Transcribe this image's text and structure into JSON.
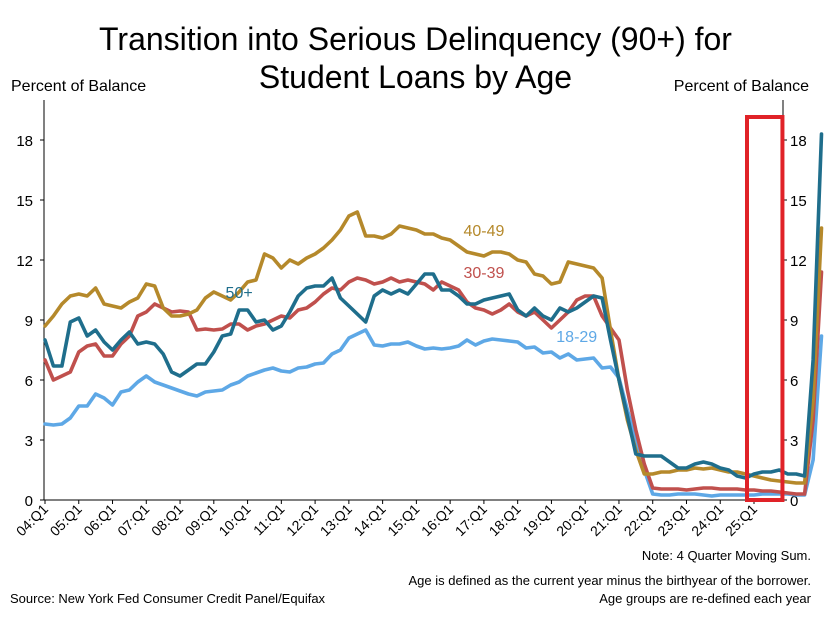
{
  "chart_data": {
    "type": "line",
    "title": [
      "Transition into Serious Delinquency (90+) for",
      "Student Loans by Age"
    ],
    "ylabel_left": "Percent of Balance",
    "ylabel_right": "Percent of Balance",
    "x_start": "2004 Q1",
    "x_end": "2025 Q2",
    "quarter_labels": [
      "04:Q1",
      "05:Q1",
      "06:Q1",
      "07:Q1",
      "08:Q1",
      "09:Q1",
      "10:Q1",
      "11:Q1",
      "12:Q1",
      "13:Q1",
      "14:Q1",
      "15:Q1",
      "16:Q1",
      "17:Q1",
      "18:Q1",
      "19:Q1",
      "20:Q1",
      "21:Q1",
      "22:Q1",
      "23:Q1",
      "24:Q1",
      "25:Q1"
    ],
    "yticks": [
      "0",
      "3",
      "6",
      "9",
      "12",
      "15",
      "18"
    ],
    "ylim": [
      0,
      20
    ],
    "grid": false,
    "highlight_box": {
      "from": "2025 Q1",
      "to": "2025 Q2",
      "color": "#e02228"
    },
    "series": [
      {
        "name": "18-29",
        "color": "#5ea8e6",
        "label_at": [
          "2019 Q4",
          7.9
        ],
        "values": [
          3.8,
          3.75,
          3.8,
          4.1,
          4.7,
          4.7,
          5.3,
          5.1,
          4.75,
          5.4,
          5.5,
          5.9,
          6.2,
          5.9,
          5.75,
          5.6,
          5.45,
          5.3,
          5.2,
          5.4,
          5.45,
          5.5,
          5.75,
          5.9,
          6.2,
          6.35,
          6.5,
          6.6,
          6.45,
          6.4,
          6.6,
          6.65,
          6.8,
          6.85,
          7.3,
          7.5,
          8.1,
          8.3,
          8.5,
          7.75,
          7.7,
          7.8,
          7.8,
          7.9,
          7.7,
          7.55,
          7.6,
          7.55,
          7.6,
          7.7,
          8.0,
          7.75,
          7.95,
          8.05,
          8.0,
          7.95,
          7.9,
          7.6,
          7.65,
          7.35,
          7.4,
          7.1,
          7.3,
          7.0,
          7.05,
          7.1,
          6.6,
          6.65,
          6.1,
          4.5,
          3.0,
          1.5,
          0.3,
          0.25,
          0.25,
          0.3,
          0.3,
          0.3,
          0.25,
          0.2,
          0.25,
          0.25,
          0.25,
          0.25,
          0.25,
          0.3,
          0.3,
          0.3,
          0.3,
          0.25,
          0.25,
          2.0,
          8.2
        ]
      },
      {
        "name": "30-39",
        "color": "#c0504d",
        "label_at": [
          "2017 Q1",
          11.1
        ],
        "values": [
          7.0,
          6.0,
          6.2,
          6.4,
          7.4,
          7.7,
          7.8,
          7.2,
          7.2,
          7.8,
          8.2,
          9.2,
          9.4,
          9.8,
          9.6,
          9.4,
          9.45,
          9.4,
          8.5,
          8.55,
          8.5,
          8.55,
          8.8,
          8.8,
          8.5,
          8.7,
          8.8,
          9.0,
          9.2,
          9.1,
          9.5,
          9.6,
          9.9,
          10.3,
          10.6,
          10.5,
          10.9,
          11.1,
          11.0,
          10.8,
          10.9,
          11.1,
          10.9,
          11.0,
          10.9,
          10.8,
          10.5,
          10.9,
          10.7,
          10.5,
          9.9,
          9.6,
          9.5,
          9.3,
          9.5,
          9.8,
          9.4,
          9.2,
          9.4,
          9.0,
          8.6,
          9.0,
          9.4,
          10.0,
          10.2,
          10.2,
          9.2,
          8.6,
          8.0,
          5.5,
          3.5,
          1.8,
          0.6,
          0.55,
          0.55,
          0.55,
          0.5,
          0.55,
          0.6,
          0.6,
          0.55,
          0.55,
          0.55,
          0.5,
          0.5,
          0.45,
          0.45,
          0.4,
          0.35,
          0.3,
          0.3,
          4.0,
          11.4
        ]
      },
      {
        "name": "40-49",
        "color": "#b5892b",
        "label_at": [
          "2017 Q1",
          13.2
        ],
        "values": [
          8.7,
          9.2,
          9.8,
          10.2,
          10.3,
          10.2,
          10.6,
          9.8,
          9.7,
          9.6,
          9.9,
          10.1,
          10.8,
          10.7,
          9.6,
          9.2,
          9.2,
          9.3,
          9.5,
          10.1,
          10.4,
          10.2,
          10.0,
          10.4,
          10.9,
          11.0,
          12.3,
          12.1,
          11.6,
          12.0,
          11.8,
          12.1,
          12.3,
          12.6,
          13.0,
          13.5,
          14.2,
          14.4,
          13.2,
          13.2,
          13.1,
          13.3,
          13.7,
          13.6,
          13.5,
          13.3,
          13.3,
          13.1,
          13.0,
          12.7,
          12.4,
          12.3,
          12.2,
          12.4,
          12.4,
          12.3,
          12.0,
          11.9,
          11.3,
          11.2,
          10.8,
          10.9,
          11.9,
          11.8,
          11.7,
          11.6,
          11.1,
          8.5,
          6.0,
          4.0,
          2.5,
          1.3,
          1.3,
          1.4,
          1.4,
          1.5,
          1.5,
          1.6,
          1.55,
          1.6,
          1.5,
          1.4,
          1.4,
          1.3,
          1.2,
          1.1,
          1.0,
          0.95,
          0.9,
          0.85,
          0.85,
          5.0,
          13.6
        ]
      },
      {
        "name": "50+",
        "color": "#1f6e8c",
        "label_at": [
          "2009 Q4",
          10.1
        ],
        "values": [
          8.0,
          6.7,
          6.7,
          8.9,
          9.1,
          8.2,
          8.5,
          7.9,
          7.5,
          8.0,
          8.4,
          7.8,
          7.9,
          7.8,
          7.3,
          6.4,
          6.2,
          6.5,
          6.8,
          6.8,
          7.4,
          8.2,
          8.3,
          9.5,
          9.5,
          8.9,
          9.0,
          8.5,
          8.7,
          9.4,
          10.2,
          10.6,
          10.7,
          10.7,
          11.1,
          10.1,
          9.7,
          9.3,
          8.9,
          10.2,
          10.5,
          10.3,
          10.5,
          10.3,
          10.8,
          11.3,
          11.3,
          10.5,
          10.5,
          10.2,
          9.8,
          9.8,
          10.0,
          10.1,
          10.2,
          10.3,
          9.5,
          9.2,
          9.6,
          9.2,
          9.0,
          9.6,
          9.4,
          9.6,
          9.9,
          10.2,
          10.1,
          8.0,
          6.0,
          4.2,
          2.3,
          2.2,
          2.2,
          2.2,
          1.9,
          1.6,
          1.6,
          1.8,
          1.9,
          1.8,
          1.6,
          1.5,
          1.2,
          1.1,
          1.3,
          1.4,
          1.4,
          1.5,
          1.3,
          1.3,
          1.2,
          7.0,
          18.3
        ]
      }
    ]
  },
  "notes": [
    "Note: 4 Quarter Moving Sum.",
    "Age is defined as the current year minus the birthyear of the borrower.",
    "Age groups are re-defined each year"
  ],
  "source": "Source: New York Fed Consumer Credit Panel/Equifax"
}
